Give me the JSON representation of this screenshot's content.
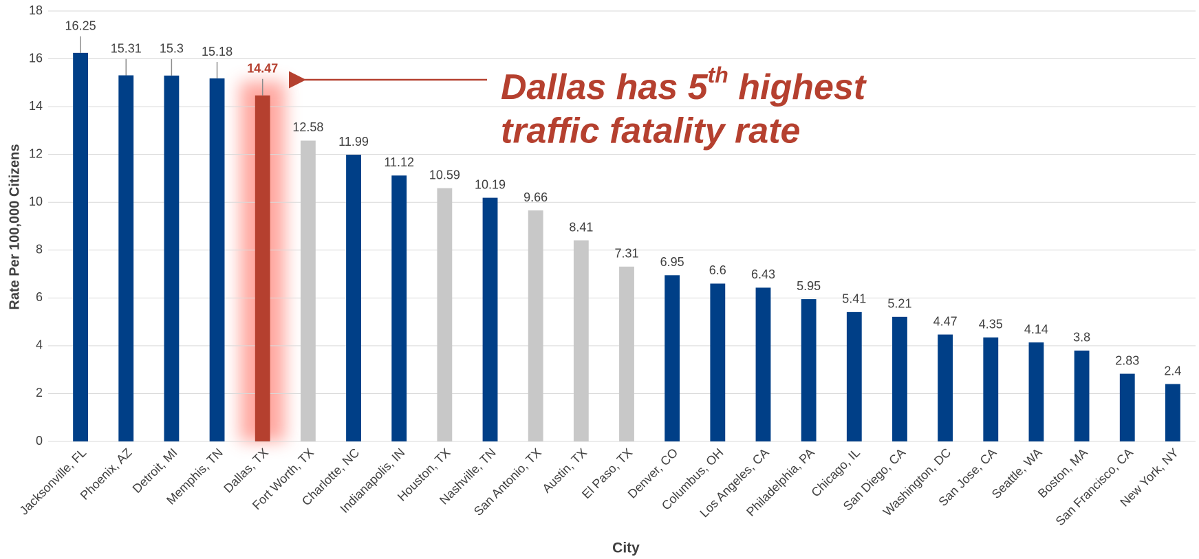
{
  "chart_data": {
    "type": "bar",
    "x_label": "City",
    "y_label": "Rate Per 100,000 Citizens",
    "categories": [
      "Jacksonville, FL",
      "Phoenix, AZ",
      "Detroit, MI",
      "Memphis, TN",
      "Dallas, TX",
      "Fort Worth, TX",
      "Charlotte, NC",
      "Indianapolis, IN",
      "Houston, TX",
      "Nashville, TN",
      "San Antonio, TX",
      "Austin, TX",
      "El Paso, TX",
      "Denver, CO",
      "Columbus, OH",
      "Los Angeles, CA",
      "Philadelphia, PA",
      "Chicago, IL",
      "San Diego, CA",
      "Washington, DC",
      "San Jose, CA",
      "Seattle, WA",
      "Boston, MA",
      "San Francisco, CA",
      "New York, NY"
    ],
    "values": [
      16.25,
      15.31,
      15.3,
      15.18,
      14.47,
      12.58,
      11.99,
      11.12,
      10.59,
      10.19,
      9.66,
      8.41,
      7.31,
      6.95,
      6.6,
      6.43,
      5.95,
      5.41,
      5.21,
      4.47,
      4.35,
      4.14,
      3.8,
      2.83,
      2.4
    ],
    "colors": [
      "#003f87",
      "#003f87",
      "#003f87",
      "#003f87",
      "#b5402f",
      "#c8c8c8",
      "#003f87",
      "#003f87",
      "#c8c8c8",
      "#003f87",
      "#c8c8c8",
      "#c8c8c8",
      "#c8c8c8",
      "#003f87",
      "#003f87",
      "#003f87",
      "#003f87",
      "#003f87",
      "#003f87",
      "#003f87",
      "#003f87",
      "#003f87",
      "#003f87",
      "#003f87",
      "#003f87"
    ],
    "ylim": [
      0,
      18
    ],
    "yticks": [
      0,
      2,
      4,
      6,
      8,
      10,
      12,
      14,
      16,
      18
    ],
    "grid": true,
    "annotation": {
      "line1_start": "Dallas has 5",
      "line1_sup": "th",
      "line1_end": " highest",
      "line2": "traffic fatality rate",
      "color": "#b5402f"
    }
  }
}
